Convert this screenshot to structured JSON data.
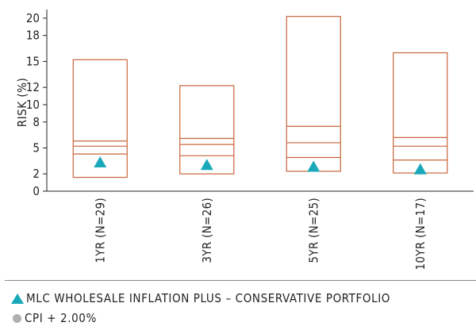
{
  "chart_data": {
    "type": "box",
    "ylabel": "RISK (%)",
    "ylim": [
      0,
      21
    ],
    "yticks": [
      {
        "value": 0,
        "label": "0"
      },
      {
        "value": 2,
        "label": "2"
      },
      {
        "value": 5,
        "label": "5"
      },
      {
        "value": 8,
        "label": "8"
      },
      {
        "value": 10,
        "label": "10"
      },
      {
        "value": 12,
        "label": "12"
      },
      {
        "value": 15,
        "label": "15"
      },
      {
        "value": 18,
        "label": "18"
      },
      {
        "value": 20,
        "label": "20"
      }
    ],
    "categories": [
      "1YR (N=29)",
      "3YR (N=26)",
      "5YR (N=25)",
      "10YR (N=17)"
    ],
    "boxes": [
      {
        "min": 1.6,
        "q1": 4.3,
        "median": 5.2,
        "q3": 5.8,
        "max": 15.2
      },
      {
        "min": 2.0,
        "q1": 4.1,
        "median": 5.4,
        "q3": 6.1,
        "max": 12.2
      },
      {
        "min": 2.3,
        "q1": 3.9,
        "median": 5.6,
        "q3": 7.5,
        "max": 20.2
      },
      {
        "min": 2.1,
        "q1": 3.6,
        "median": 5.2,
        "q3": 6.2,
        "max": 16.0
      }
    ],
    "series": [
      {
        "name": "MLC WHOLESALE INFLATION PLUS – CONSERVATIVE PORTFOLIO",
        "marker": "triangle",
        "values": [
          3.3,
          3.0,
          2.8,
          2.5
        ]
      }
    ],
    "grid": false,
    "legend_position": "bottom",
    "colors": {
      "box": "#c8653a",
      "marker": "#19a9bb",
      "benchmark": "#b0b0b0",
      "axis": "#222222"
    }
  },
  "legend": [
    {
      "label": "MLC WHOLESALE INFLATION PLUS – CONSERVATIVE PORTFOLIO",
      "symbol": "triangle"
    },
    {
      "label": "CPI + 2.00%",
      "symbol": "circle"
    }
  ]
}
